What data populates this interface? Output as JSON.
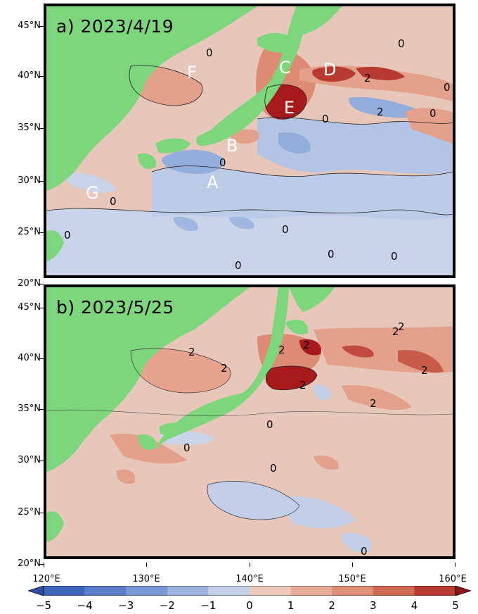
{
  "panels": [
    {
      "title": "a) 2023/4/19"
    },
    {
      "title": "b) 2023/5/25"
    }
  ],
  "region_labels": [
    "A",
    "B",
    "C",
    "D",
    "E",
    "F",
    "G"
  ],
  "contour_labels_a": [
    "0",
    "0",
    "0",
    "0",
    "0",
    "0",
    "0",
    "0",
    "0",
    "2",
    "2",
    "0",
    "0",
    "0"
  ],
  "contour_labels_b": [
    "2",
    "2",
    "2",
    "2",
    "2",
    "2",
    "2",
    "2",
    "2",
    "0",
    "0",
    "0",
    "0"
  ],
  "y_axis": {
    "panel_a_ticks": [
      "45°N",
      "40°N",
      "35°N",
      "30°N",
      "25°N",
      "20°N"
    ],
    "panel_b_ticks": [
      "45°N",
      "40°N",
      "35°N",
      "30°N",
      "25°N",
      "20°N"
    ]
  },
  "x_axis": {
    "ticks": [
      "120°E",
      "130°E",
      "140°E",
      "150°E",
      "160°E"
    ]
  },
  "colorbar": {
    "ticks": [
      "−5",
      "−4",
      "−3",
      "−2",
      "−1",
      "0",
      "1",
      "2",
      "3",
      "4",
      "5"
    ],
    "colors": [
      "#2c4fa3",
      "#4166bd",
      "#5a7ec9",
      "#7b98d6",
      "#9db3e0",
      "#c2cfe9",
      "#ecc9bb",
      "#e8ad98",
      "#df8f78",
      "#d06a55",
      "#b83c32",
      "#8e1416"
    ]
  },
  "colors": {
    "land": "#7ed67c",
    "neutral": "#e8c7bb",
    "cool": "#b8c8e6",
    "warm": "#e6a38e",
    "hot": "#a5181a"
  }
}
